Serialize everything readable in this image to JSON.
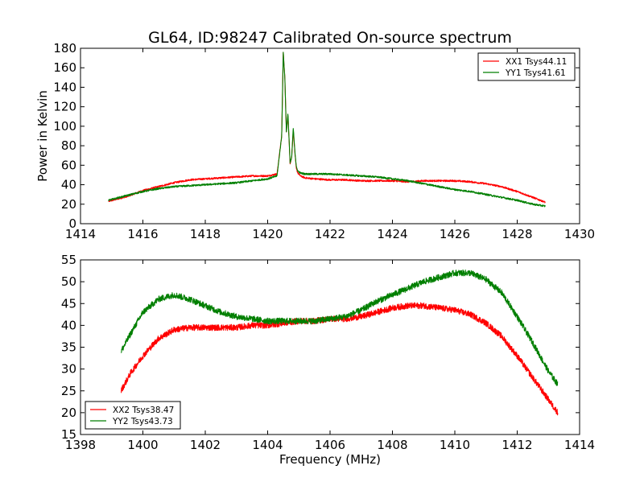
{
  "figure": {
    "title": "GL64, ID:98247 Calibrated On-source spectrum",
    "xlabel": "Frequency (MHz)"
  },
  "colors": {
    "red": "#ff0000",
    "green": "#007f00"
  },
  "chart_data": [
    {
      "type": "line",
      "title": "GL64, ID:98247 Calibrated On-source spectrum",
      "xlabel": "",
      "ylabel": "Power in Kelvin",
      "xlim": [
        1414,
        1430
      ],
      "ylim": [
        0,
        180
      ],
      "xticks": [
        1414,
        1416,
        1418,
        1420,
        1422,
        1424,
        1426,
        1428,
        1430
      ],
      "yticks": [
        0,
        20,
        40,
        60,
        80,
        100,
        120,
        140,
        160,
        180
      ],
      "legend": "top-right",
      "grid": false,
      "series": [
        {
          "name": "XX1 Tsys44.11",
          "color": "#ff0000",
          "noise": 0.9,
          "x": [
            1414.9,
            1415.5,
            1416.0,
            1416.5,
            1417.0,
            1417.5,
            1418.0,
            1418.5,
            1419.0,
            1419.5,
            1420.0,
            1420.3,
            1420.45,
            1420.5,
            1420.55,
            1420.6,
            1420.65,
            1420.72,
            1420.77,
            1420.82,
            1420.88,
            1420.92,
            1420.97,
            1421.05,
            1421.2,
            1421.5,
            1422.0,
            1422.5,
            1423.0,
            1423.5,
            1424.0,
            1424.5,
            1425.0,
            1425.5,
            1426.0,
            1426.5,
            1427.0,
            1427.5,
            1428.0,
            1428.5,
            1428.9
          ],
          "y": [
            23,
            28,
            34,
            38,
            42,
            45,
            46,
            47,
            48,
            49,
            49,
            51,
            90,
            175,
            150,
            95,
            112,
            62,
            68,
            96,
            70,
            56,
            52,
            49,
            47,
            46,
            45,
            45,
            44,
            44,
            44,
            43,
            44,
            44,
            44,
            43,
            41,
            38,
            33,
            27,
            22
          ]
        },
        {
          "name": "YY1 Tsys41.61",
          "color": "#007f00",
          "noise": 0.9,
          "x": [
            1414.9,
            1415.5,
            1416.0,
            1416.5,
            1417.0,
            1417.5,
            1418.0,
            1418.5,
            1419.0,
            1419.5,
            1420.0,
            1420.3,
            1420.45,
            1420.5,
            1420.55,
            1420.6,
            1420.65,
            1420.72,
            1420.77,
            1420.82,
            1420.88,
            1420.92,
            1420.97,
            1421.05,
            1421.2,
            1421.5,
            1422.0,
            1422.5,
            1423.0,
            1423.5,
            1424.0,
            1424.5,
            1425.0,
            1425.5,
            1426.0,
            1426.5,
            1427.0,
            1427.5,
            1428.0,
            1428.5,
            1428.9
          ],
          "y": [
            24,
            29,
            33,
            36,
            38,
            39,
            40,
            41,
            42,
            44,
            46,
            49,
            90,
            176,
            150,
            94,
            113,
            62,
            68,
            98,
            72,
            58,
            54,
            52,
            51,
            51,
            51,
            50,
            49,
            48,
            46,
            44,
            41,
            38,
            35,
            33,
            30,
            27,
            24,
            20,
            18
          ]
        }
      ]
    },
    {
      "type": "line",
      "title": "",
      "xlabel": "Frequency (MHz)",
      "ylabel": "",
      "xlim": [
        1398,
        1414
      ],
      "ylim": [
        15,
        55
      ],
      "xticks": [
        1398,
        1400,
        1402,
        1404,
        1406,
        1408,
        1410,
        1412,
        1414
      ],
      "yticks": [
        15,
        20,
        25,
        30,
        35,
        40,
        45,
        50,
        55
      ],
      "legend": "bottom-left",
      "grid": false,
      "series": [
        {
          "name": "XX2 Tsys38.47",
          "color": "#ff0000",
          "noise": 0.7,
          "x": [
            1399.3,
            1399.6,
            1400.0,
            1400.5,
            1401.0,
            1401.5,
            1402.0,
            1402.5,
            1403.0,
            1403.5,
            1404.0,
            1404.5,
            1405.0,
            1405.5,
            1406.0,
            1406.5,
            1407.0,
            1407.5,
            1408.0,
            1408.5,
            1409.0,
            1409.5,
            1410.0,
            1410.5,
            1411.0,
            1411.5,
            1412.0,
            1412.5,
            1413.0,
            1413.3
          ],
          "y": [
            25,
            29,
            33,
            37,
            39,
            39.5,
            39.5,
            39.5,
            39.5,
            40,
            40,
            40.5,
            41,
            41,
            41.5,
            41.5,
            42,
            43,
            44,
            44.5,
            44.5,
            44,
            43.5,
            42.5,
            40.5,
            37.5,
            33,
            28,
            23,
            20
          ]
        },
        {
          "name": "YY2 Tsys43.73",
          "color": "#007f00",
          "noise": 0.7,
          "x": [
            1399.3,
            1399.6,
            1400.0,
            1400.5,
            1401.0,
            1401.5,
            1402.0,
            1402.5,
            1403.0,
            1403.5,
            1404.0,
            1404.5,
            1405.0,
            1405.5,
            1406.0,
            1406.5,
            1407.0,
            1407.5,
            1408.0,
            1408.5,
            1409.0,
            1409.5,
            1410.0,
            1410.5,
            1411.0,
            1411.5,
            1412.0,
            1412.5,
            1413.0,
            1413.3
          ],
          "y": [
            34,
            38,
            43,
            46,
            47,
            46,
            44.5,
            43,
            42,
            41.5,
            41,
            41,
            41,
            41,
            41.5,
            42,
            43.5,
            45.5,
            47,
            48.5,
            50,
            51,
            52,
            52,
            50.5,
            47.5,
            42,
            36,
            29.5,
            26.5
          ]
        }
      ]
    }
  ]
}
